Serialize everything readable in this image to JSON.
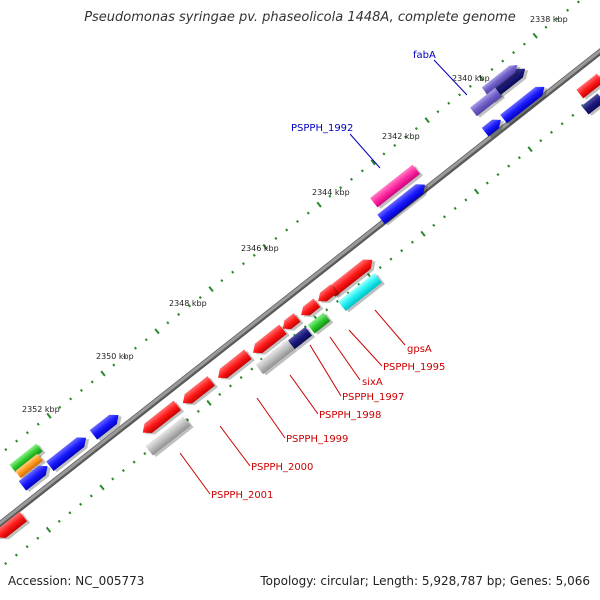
{
  "title": "Pseudomonas syringae pv. phaseolicola 1448A, complete genome",
  "accession": "Accession: NC_005773",
  "summary": "Topology: circular; Length: 5,928,787 bp; Genes: 5,066",
  "tick_labels": [
    "2338 kbp",
    "2340 kbp",
    "2342 kbp",
    "2344 kbp",
    "2346 kbp",
    "2348 kbp",
    "2350 kbp",
    "2352 kbp"
  ],
  "gene_labels_top": [
    "fabA",
    "PSPPH_1992"
  ],
  "gene_labels_bottom": [
    "gpsA",
    "PSPPH_1995",
    "sixA",
    "PSPPH_1997",
    "PSPPH_1998",
    "PSPPH_1999",
    "PSPPH_2000",
    "PSPPH_2001"
  ],
  "colors": {
    "backbone": "#8a8a8a",
    "tick": "#2a8a2a",
    "red_gene": "#ff1a1a",
    "blue_gene": "#1a1aff",
    "navy_gene": "#1a1a80",
    "purple_gene": "#7060c8",
    "magenta_gene": "#ff2aa0",
    "cyan_gene": "#20f0f0",
    "green_gene": "#30cc30",
    "gray_gene": "#bdbdbd",
    "orange_gene": "#ff9a20",
    "label_red": "#cc0000",
    "label_blue": "#0000bb"
  }
}
